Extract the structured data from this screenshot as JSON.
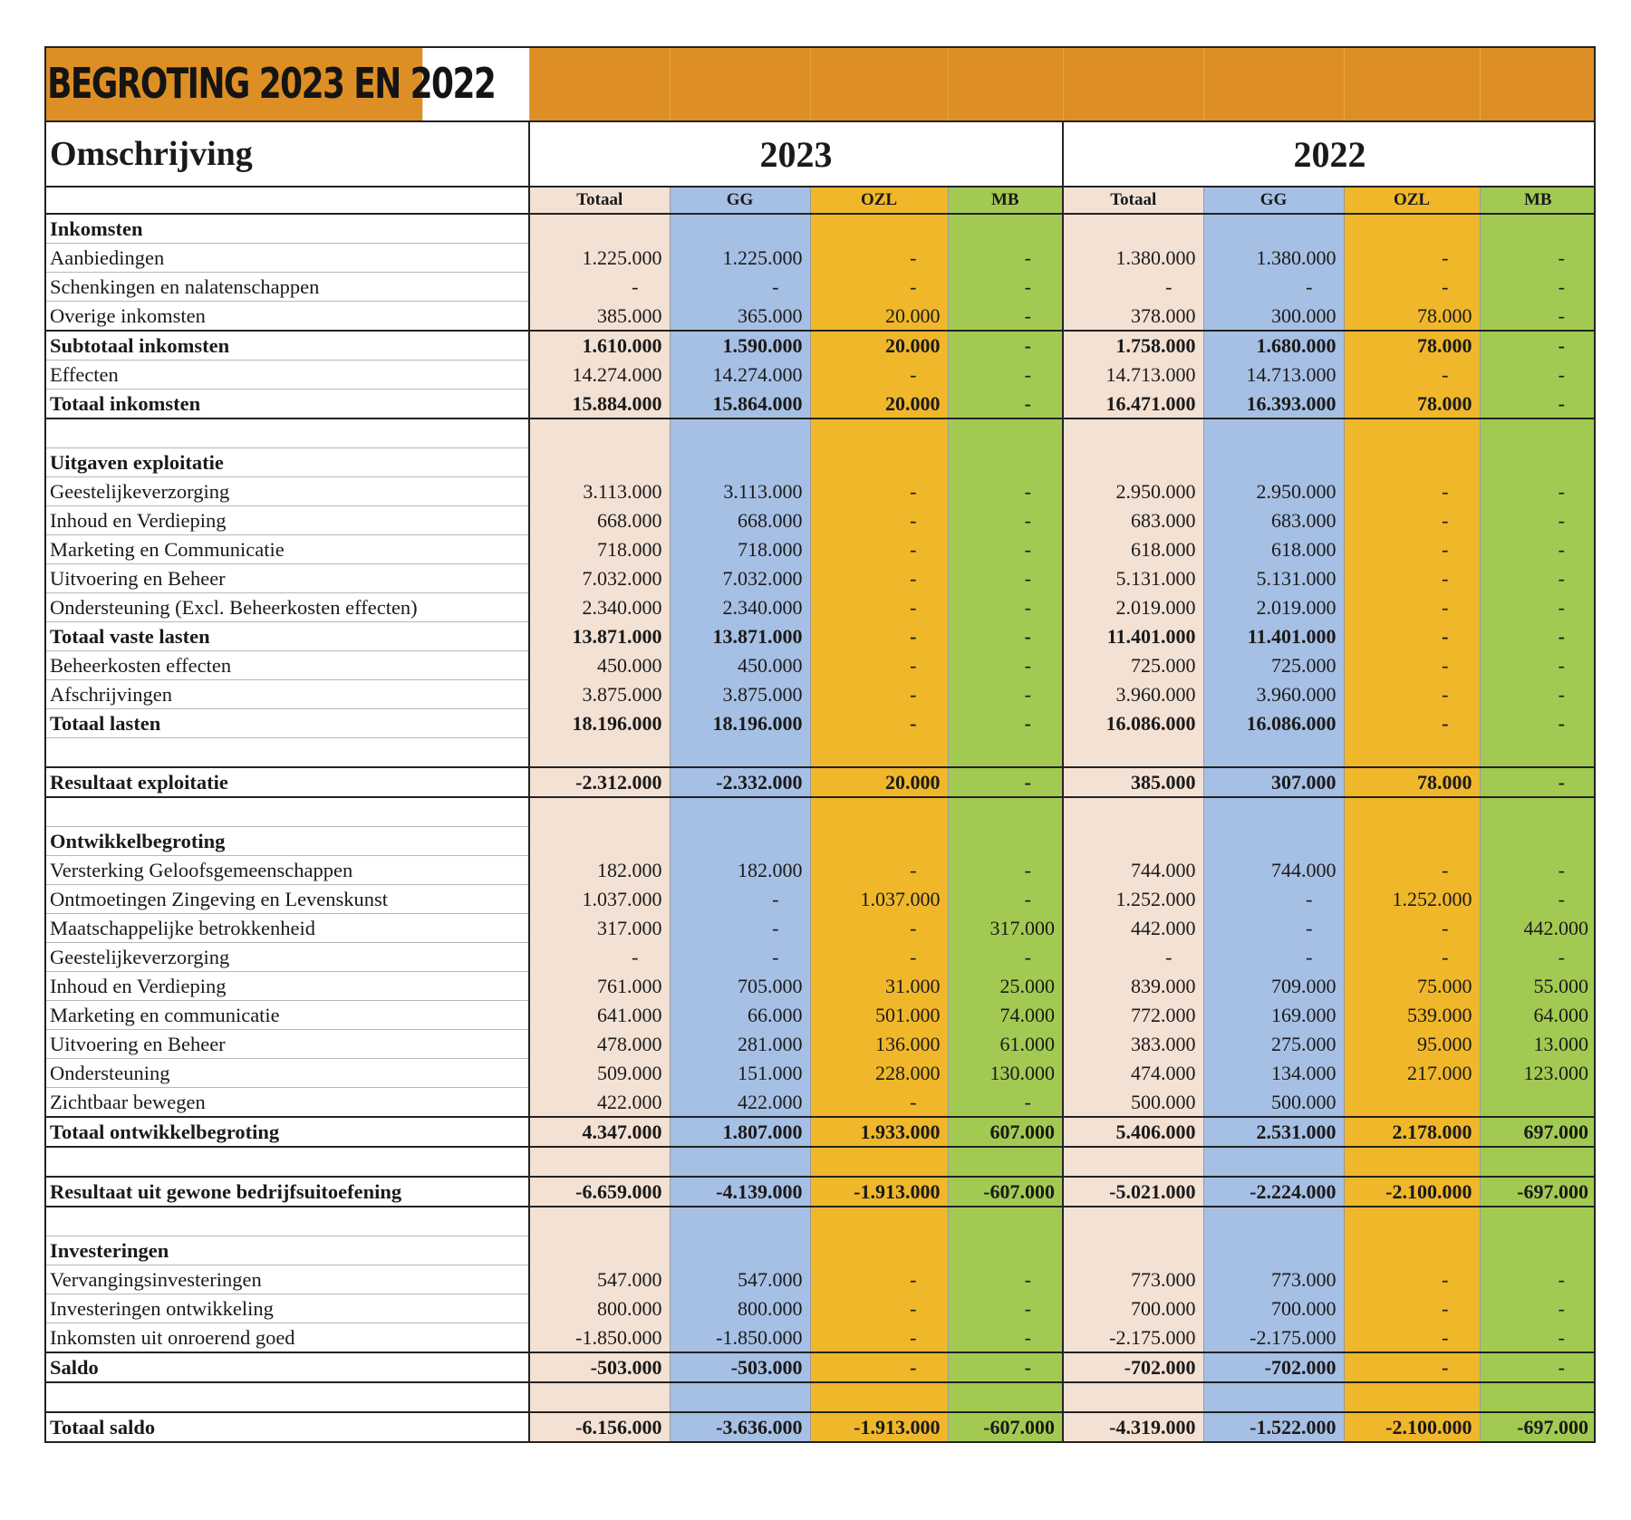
{
  "title": "BEGROTING 2023 EN 2022",
  "header": {
    "omschrijving": "Omschrijving",
    "year_a": "2023",
    "year_b": "2022",
    "columns": [
      "Totaal",
      "GG",
      "OZL",
      "MB",
      "Totaal",
      "GG",
      "OZL",
      "MB"
    ]
  },
  "colors": {
    "title_bg": "#dd8f26",
    "totaal": "#f3e1d4",
    "gg": "#a6bfe4",
    "ozl": "#f0b72a",
    "mb": "#a2ca52"
  },
  "rows": [
    {
      "label": "Inkomsten",
      "style": "bold",
      "values": [
        "",
        "",
        "",
        "",
        "",
        "",
        "",
        ""
      ]
    },
    {
      "label": "Aanbiedingen",
      "values": [
        "1.225.000",
        "1.225.000",
        "-",
        "-",
        "1.380.000",
        "1.380.000",
        "-",
        "-"
      ]
    },
    {
      "label": "Schenkingen en nalatenschappen",
      "values": [
        "-",
        "-",
        "-",
        "-",
        "-",
        "-",
        "-",
        "-"
      ]
    },
    {
      "label": "Overige inkomsten",
      "values": [
        "385.000",
        "365.000",
        "20.000",
        "-",
        "378.000",
        "300.000",
        "78.000",
        "-"
      ]
    },
    {
      "label": "Subtotaal inkomsten",
      "style": "bold-top",
      "values": [
        "1.610.000",
        "1.590.000",
        "20.000",
        "-",
        "1.758.000",
        "1.680.000",
        "78.000",
        "-"
      ]
    },
    {
      "label": "Effecten",
      "values": [
        "14.274.000",
        "14.274.000",
        "-",
        "-",
        "14.713.000",
        "14.713.000",
        "-",
        "-"
      ]
    },
    {
      "label": "Totaal inkomsten",
      "style": "total",
      "values": [
        "15.884.000",
        "15.864.000",
        "20.000",
        "-",
        "16.471.000",
        "16.393.000",
        "78.000",
        "-"
      ]
    },
    {
      "label": "",
      "values": [
        "",
        "",
        "",
        "",
        "",
        "",
        "",
        ""
      ]
    },
    {
      "label": "Uitgaven exploitatie",
      "style": "bold",
      "values": [
        "",
        "",
        "",
        "",
        "",
        "",
        "",
        ""
      ]
    },
    {
      "label": "Geestelijkeverzorging",
      "values": [
        "3.113.000",
        "3.113.000",
        "-",
        "-",
        "2.950.000",
        "2.950.000",
        "-",
        "-"
      ]
    },
    {
      "label": "Inhoud en Verdieping",
      "values": [
        "668.000",
        "668.000",
        "-",
        "-",
        "683.000",
        "683.000",
        "-",
        "-"
      ]
    },
    {
      "label": "Marketing en Communicatie",
      "values": [
        "718.000",
        "718.000",
        "-",
        "-",
        "618.000",
        "618.000",
        "-",
        "-"
      ]
    },
    {
      "label": "Uitvoering en Beheer",
      "values": [
        "7.032.000",
        "7.032.000",
        "-",
        "-",
        "5.131.000",
        "5.131.000",
        "-",
        "-"
      ]
    },
    {
      "label": "Ondersteuning (Excl. Beheerkosten effecten)",
      "values": [
        "2.340.000",
        "2.340.000",
        "-",
        "-",
        "2.019.000",
        "2.019.000",
        "-",
        "-"
      ]
    },
    {
      "label": "Totaal vaste lasten",
      "style": "bold",
      "values": [
        "13.871.000",
        "13.871.000",
        "-",
        "-",
        "11.401.000",
        "11.401.000",
        "-",
        "-"
      ]
    },
    {
      "label": "Beheerkosten effecten",
      "values": [
        "450.000",
        "450.000",
        "-",
        "-",
        "725.000",
        "725.000",
        "-",
        "-"
      ]
    },
    {
      "label": "Afschrijvingen",
      "values": [
        "3.875.000",
        "3.875.000",
        "-",
        "-",
        "3.960.000",
        "3.960.000",
        "-",
        "-"
      ]
    },
    {
      "label": "Totaal lasten",
      "style": "bold",
      "values": [
        "18.196.000",
        "18.196.000",
        "-",
        "-",
        "16.086.000",
        "16.086.000",
        "-",
        "-"
      ]
    },
    {
      "label": "",
      "values": [
        "",
        "",
        "",
        "",
        "",
        "",
        "",
        ""
      ]
    },
    {
      "label": "Resultaat exploitatie",
      "style": "total-both",
      "values": [
        "-2.312.000",
        "-2.332.000",
        "20.000",
        "-",
        "385.000",
        "307.000",
        "78.000",
        "-"
      ]
    },
    {
      "label": "",
      "values": [
        "",
        "",
        "",
        "",
        "",
        "",
        "",
        ""
      ]
    },
    {
      "label": "Ontwikkelbegroting",
      "style": "bold",
      "values": [
        "",
        "",
        "",
        "",
        "",
        "",
        "",
        ""
      ]
    },
    {
      "label": "Versterking Geloofsgemeenschappen",
      "values": [
        "182.000",
        "182.000",
        "-",
        "-",
        "744.000",
        "744.000",
        "-",
        "-"
      ]
    },
    {
      "label": "Ontmoetingen Zingeving en Levenskunst",
      "values": [
        "1.037.000",
        "-",
        "1.037.000",
        "-",
        "1.252.000",
        "-",
        "1.252.000",
        "-"
      ]
    },
    {
      "label": "Maatschappelijke betrokkenheid",
      "values": [
        "317.000",
        "-",
        "-",
        "317.000",
        "442.000",
        "-",
        "-",
        "442.000"
      ]
    },
    {
      "label": "Geestelijkeverzorging",
      "values": [
        "-",
        "-",
        "-",
        "-",
        "-",
        "-",
        "-",
        "-"
      ]
    },
    {
      "label": "Inhoud en Verdieping",
      "values": [
        "761.000",
        "705.000",
        "31.000",
        "25.000",
        "839.000",
        "709.000",
        "75.000",
        "55.000"
      ]
    },
    {
      "label": "Marketing en communicatie",
      "values": [
        "641.000",
        "66.000",
        "501.000",
        "74.000",
        "772.000",
        "169.000",
        "539.000",
        "64.000"
      ]
    },
    {
      "label": "Uitvoering en Beheer",
      "values": [
        "478.000",
        "281.000",
        "136.000",
        "61.000",
        "383.000",
        "275.000",
        "95.000",
        "13.000"
      ]
    },
    {
      "label": "Ondersteuning",
      "values": [
        "509.000",
        "151.000",
        "228.000",
        "130.000",
        "474.000",
        "134.000",
        "217.000",
        "123.000"
      ]
    },
    {
      "label": "Zichtbaar bewegen",
      "values": [
        "422.000",
        "422.000",
        "-",
        "-",
        "500.000",
        "500.000",
        "",
        ""
      ]
    },
    {
      "label": "Totaal ontwikkelbegroting",
      "style": "total-both",
      "values": [
        "4.347.000",
        "1.807.000",
        "1.933.000",
        "607.000",
        "5.406.000",
        "2.531.000",
        "2.178.000",
        "697.000"
      ]
    },
    {
      "label": "",
      "values": [
        "",
        "",
        "",
        "",
        "",
        "",
        "",
        ""
      ]
    },
    {
      "label": "Resultaat uit gewone bedrijfsuitoefening",
      "style": "total-both",
      "values": [
        "-6.659.000",
        "-4.139.000",
        "-1.913.000",
        "-607.000",
        "-5.021.000",
        "-2.224.000",
        "-2.100.000",
        "-697.000"
      ]
    },
    {
      "label": "",
      "values": [
        "",
        "",
        "",
        "",
        "",
        "",
        "",
        ""
      ]
    },
    {
      "label": "Investeringen",
      "style": "bold",
      "values": [
        "",
        "",
        "",
        "",
        "",
        "",
        "",
        ""
      ]
    },
    {
      "label": "Vervangingsinvesteringen",
      "values": [
        "547.000",
        "547.000",
        "-",
        "-",
        "773.000",
        "773.000",
        "-",
        "-"
      ]
    },
    {
      "label": "Investeringen ontwikkeling",
      "values": [
        "800.000",
        "800.000",
        "-",
        "-",
        "700.000",
        "700.000",
        "-",
        "-"
      ]
    },
    {
      "label": "Inkomsten uit onroerend goed",
      "values": [
        "-1.850.000",
        "-1.850.000",
        "-",
        "-",
        "-2.175.000",
        "-2.175.000",
        "-",
        "-"
      ]
    },
    {
      "label": "Saldo",
      "style": "total-both",
      "values": [
        "-503.000",
        "-503.000",
        "-",
        "-",
        "-702.000",
        "-702.000",
        "-",
        "-"
      ]
    },
    {
      "label": "",
      "values": [
        "",
        "",
        "",
        "",
        "",
        "",
        "",
        ""
      ]
    },
    {
      "label": "Totaal saldo",
      "style": "total-both",
      "values": [
        "-6.156.000",
        "-3.636.000",
        "-1.913.000",
        "-607.000",
        "-4.319.000",
        "-1.522.000",
        "-2.100.000",
        "-697.000"
      ]
    }
  ]
}
